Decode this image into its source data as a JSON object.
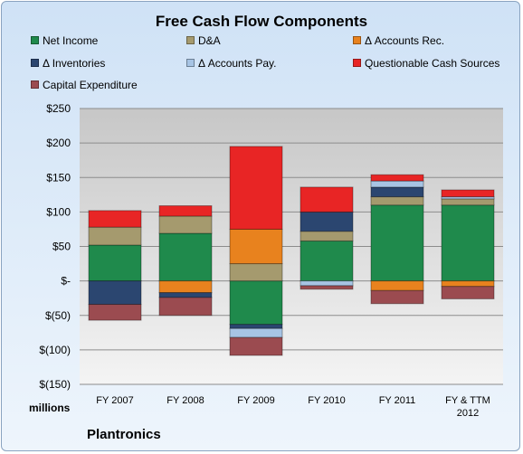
{
  "chart_data": {
    "type": "bar",
    "stacked": true,
    "title": "Free Cash Flow Components",
    "units_label": "millions",
    "source_label": "Plantronics",
    "categories": [
      "FY 2007",
      "FY 2008",
      "FY 2009",
      "FY 2010",
      "FY 2011",
      "FY & TTM 2012"
    ],
    "y_ticks": [
      "$250",
      "$200",
      "$150",
      "$100",
      "$50",
      "$-",
      "$(50)",
      "$(100)",
      "$(150)"
    ],
    "ylim": [
      -150,
      250
    ],
    "legend_placement": "top",
    "series": [
      {
        "name": "Net Income",
        "color": "#1f8a4c",
        "values": [
          52,
          69,
          -63,
          58,
          110,
          110
        ]
      },
      {
        "name": "D&A",
        "color": "#a59a6e",
        "values": [
          26,
          25,
          25,
          14,
          12,
          9
        ]
      },
      {
        "name": "Δ Accounts Rec.",
        "color": "#e8821e",
        "values": [
          0,
          -17,
          50,
          0,
          -14,
          -8
        ]
      },
      {
        "name": "Δ Inventories",
        "color": "#2b4670",
        "values": [
          -34,
          -7,
          -6,
          28,
          14,
          0
        ]
      },
      {
        "name": "Δ Accounts Pay.",
        "color": "#a7c4e4",
        "values": [
          0,
          0,
          -13,
          -7,
          9,
          3
        ]
      },
      {
        "name": "Questionable Cash Sources",
        "color": "#e82525",
        "values": [
          24,
          15,
          120,
          36,
          9,
          10
        ]
      },
      {
        "name": "Capital Expenditure",
        "color": "#9b4b50",
        "values": [
          -23,
          -26,
          -26,
          -5,
          -19,
          -18
        ]
      }
    ]
  }
}
